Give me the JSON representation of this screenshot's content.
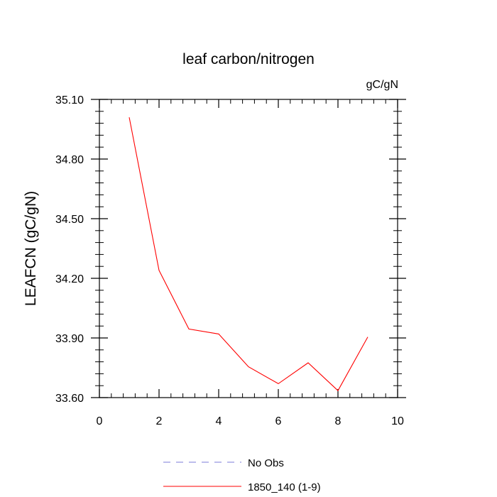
{
  "chart_data": {
    "type": "line",
    "title": "leaf carbon/nitrogen",
    "units_label": "gC/gN",
    "ylabel": "LEAFCN  (gC/gN)",
    "xlabel": "",
    "xlim": [
      0,
      10
    ],
    "ylim": [
      33.6,
      35.1
    ],
    "x_ticks": [
      0,
      2,
      4,
      6,
      8,
      10
    ],
    "x_tick_labels": [
      "0",
      "2",
      "4",
      "6",
      "8",
      "10"
    ],
    "y_ticks": [
      33.6,
      33.9,
      34.2,
      34.5,
      34.8,
      35.1
    ],
    "y_tick_labels": [
      "33.60",
      "33.90",
      "34.20",
      "34.50",
      "34.80",
      "35.10"
    ],
    "grid": false,
    "legend_position": "bottom",
    "series": [
      {
        "name": "No Obs",
        "color": "#7b7bd9",
        "style": "dashed",
        "x": [],
        "y": []
      },
      {
        "name": "1850_140 (1-9)",
        "color": "#ff0000",
        "style": "solid",
        "x": [
          1,
          2,
          3,
          4,
          5,
          6,
          7,
          8,
          9
        ],
        "y": [
          35.01,
          34.24,
          33.945,
          33.92,
          33.755,
          33.67,
          33.775,
          33.635,
          33.905
        ]
      }
    ]
  }
}
